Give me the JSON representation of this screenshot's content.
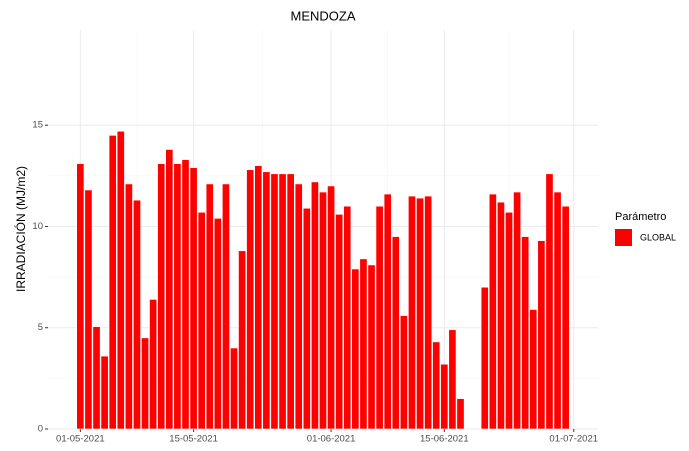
{
  "chart_data": {
    "type": "bar",
    "title": "MENDOZA",
    "y_label": "IRRADIACIÓN (MJ/m2)",
    "legend_title": "Parámetro",
    "legend_position": "right",
    "x": [
      "01-05-2021",
      "02-05-2021",
      "03-05-2021",
      "04-05-2021",
      "05-05-2021",
      "06-05-2021",
      "07-05-2021",
      "08-05-2021",
      "09-05-2021",
      "10-05-2021",
      "11-05-2021",
      "12-05-2021",
      "13-05-2021",
      "14-05-2021",
      "15-05-2021",
      "16-05-2021",
      "17-05-2021",
      "18-05-2021",
      "19-05-2021",
      "20-05-2021",
      "21-05-2021",
      "22-05-2021",
      "23-05-2021",
      "24-05-2021",
      "25-05-2021",
      "26-05-2021",
      "27-05-2021",
      "28-05-2021",
      "29-05-2021",
      "30-05-2021",
      "31-05-2021",
      "01-06-2021",
      "02-06-2021",
      "03-06-2021",
      "04-06-2021",
      "05-06-2021",
      "06-06-2021",
      "07-06-2021",
      "08-06-2021",
      "09-06-2021",
      "10-06-2021",
      "11-06-2021",
      "12-06-2021",
      "13-06-2021",
      "14-06-2021",
      "15-06-2021",
      "16-06-2021",
      "17-06-2021",
      "18-06-2021",
      "19-06-2021",
      "20-06-2021",
      "21-06-2021",
      "22-06-2021",
      "23-06-2021",
      "24-06-2021",
      "25-06-2021",
      "26-06-2021",
      "27-06-2021",
      "28-06-2021",
      "29-06-2021",
      "30-06-2021"
    ],
    "series": [
      {
        "name": "GLOBAL",
        "color": "#ff0000",
        "values": [
          13.1,
          11.8,
          5.05,
          3.6,
          14.5,
          14.7,
          12.1,
          11.3,
          4.5,
          6.4,
          13.1,
          13.8,
          13.1,
          13.3,
          12.9,
          10.7,
          12.1,
          10.4,
          12.1,
          4.0,
          8.8,
          12.8,
          13.0,
          12.7,
          12.6,
          12.6,
          12.6,
          12.1,
          10.9,
          12.2,
          11.7,
          12.0,
          10.6,
          11.0,
          7.9,
          8.4,
          8.1,
          11.0,
          11.6,
          9.5,
          5.6,
          11.5,
          11.4,
          11.5,
          4.3,
          3.2,
          4.9,
          1.5,
          null,
          null,
          7.0,
          11.6,
          11.2,
          10.7,
          11.7,
          9.5,
          5.9,
          9.3,
          12.6,
          11.7,
          11.0
        ]
      }
    ],
    "xlim": [
      "27-04-2021",
      "04-07-2021"
    ],
    "xticks": [
      "01-05-2021",
      "15-05-2021",
      "01-06-2021",
      "15-06-2021",
      "01-07-2021"
    ],
    "ylim": [
      0,
      19.7
    ],
    "yticks": [
      0,
      5,
      10,
      15
    ],
    "grid": true
  }
}
